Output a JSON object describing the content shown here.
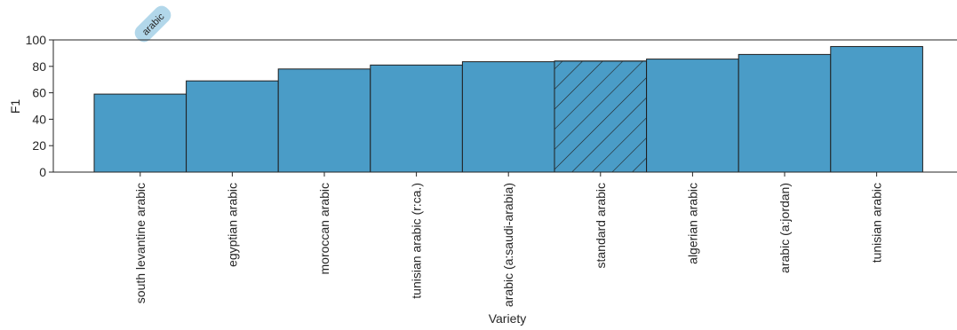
{
  "chart_data": {
    "type": "bar",
    "categories": [
      "south levantine arabic",
      "egyptian arabic",
      "moroccan arabic",
      "tunisian arabic (r:ca.)",
      "arabic (a:saudi-arabia)",
      "standard arabic",
      "algerian arabic",
      "arabic (a:jordan)",
      "tunisian arabic"
    ],
    "values": [
      59,
      69,
      78,
      81,
      83.5,
      84,
      85.5,
      89,
      95
    ],
    "highlighted_category": "standard arabic",
    "highlight_pattern": "diagonal-hatch",
    "xlabel": "Variety",
    "ylabel": "F1",
    "ylim": [
      0,
      100
    ],
    "yticks": [
      0,
      20,
      40,
      60,
      80,
      100
    ],
    "grid": false,
    "group_badge": "arabic",
    "colors": {
      "bar": "#4a9cc7",
      "bar_edge": "#1f1f1f",
      "badge": "#b2d7ea",
      "axis": "#262626"
    }
  }
}
